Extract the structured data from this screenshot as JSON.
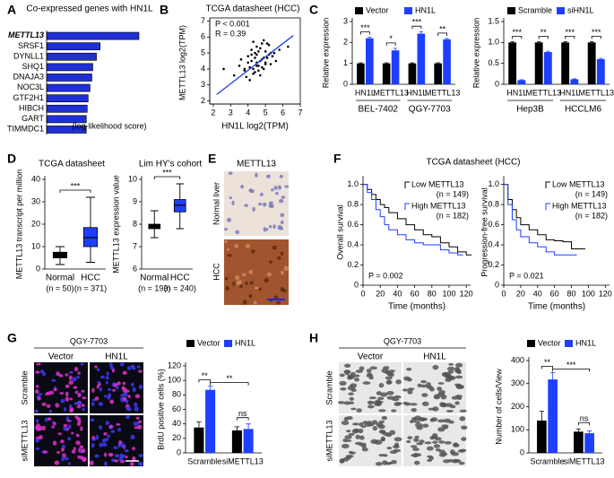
{
  "chart_data": [
    {
      "type": "hbar",
      "panel": "A",
      "title": "Co-expressed genes with HN1L",
      "annotation": "(log-likelihood score)",
      "color": "#1f2fd6",
      "categories": [
        "METTL13",
        "SRSF1",
        "DYNLL1",
        "SHQ1",
        "DNAJA3",
        "NOC3L",
        "GTF2H1",
        "HIBCH",
        "GART",
        "TIMMDC1"
      ],
      "values": [
        100,
        58,
        54,
        50,
        49,
        47,
        45,
        44,
        43,
        43
      ]
    },
    {
      "type": "scatter",
      "panel": "B",
      "title": "TCGA datasheet (HCC)",
      "annotations": [
        "P < 0.001",
        "R = 0.39"
      ],
      "x_label": "HN1L log2(TPM)",
      "y_label": "METTL13 log2(TPM)",
      "xlim": [
        1.8,
        7.0
      ],
      "ylim": [
        1.8,
        7.2
      ],
      "xticks": [
        2,
        3,
        4,
        5,
        6,
        7
      ],
      "yticks": [
        2,
        3,
        4,
        5,
        6,
        7
      ],
      "color": "#000000",
      "fit_color": "#1f3fdd",
      "x": [
        3.2,
        3.5,
        3.8,
        4.0,
        4.1,
        4.2,
        4.3,
        4.4,
        4.5,
        4.5,
        4.6,
        4.7,
        4.8,
        4.9,
        5.0,
        5.1,
        5.2,
        5.3,
        5.5,
        5.8,
        3.9,
        4.2,
        4.4,
        4.6,
        4.8,
        5.0,
        5.2,
        4.3,
        4.7,
        4.9,
        3.6,
        4.1,
        4.5,
        4.8,
        5.4,
        2.6,
        4.0,
        4.4,
        4.6,
        5.1,
        6.3,
        4.2,
        4.5,
        4.9,
        5.6,
        3.8,
        4.3,
        4.7,
        5.0,
        5.3
      ],
      "values": [
        3.6,
        4.2,
        3.9,
        4.8,
        4.1,
        4.5,
        3.7,
        5.0,
        4.4,
        4.9,
        4.2,
        5.3,
        4.6,
        4.0,
        5.1,
        4.7,
        5.5,
        4.3,
        5.0,
        5.2,
        3.5,
        5.2,
        4.7,
        3.9,
        5.6,
        4.4,
        4.9,
        4.0,
        4.5,
        5.8,
        4.6,
        3.3,
        5.4,
        4.1,
        4.8,
        4.0,
        4.4,
        3.8,
        5.1,
        5.6,
        5.4,
        4.9,
        4.2,
        4.7,
        4.5,
        4.0,
        5.7,
        3.6,
        4.3,
        5.0
      ],
      "fit": {
        "x": [
          2.2,
          6.6
        ],
        "values": [
          2.4,
          6.1
        ]
      }
    },
    {
      "type": "bar",
      "panel": "C",
      "y_label": "Relative expression",
      "ylim": [
        0,
        3
      ],
      "yticks": [
        0,
        1,
        2,
        3
      ],
      "categories": [
        "HN1L",
        "METTL13",
        "HN1L",
        "METTL13"
      ],
      "groups": [
        "BEL-7402",
        "QGY-7703"
      ],
      "series": [
        {
          "name": "Vector",
          "color": "#000000",
          "values": [
            1,
            1,
            1,
            1
          ],
          "errors": [
            0.03,
            0.03,
            0.03,
            0.03
          ]
        },
        {
          "name": "HN1L",
          "color": "#1f3fff",
          "values": [
            2.2,
            1.62,
            2.42,
            2.15
          ],
          "errors": [
            0.05,
            0.1,
            0.1,
            0.04
          ]
        }
      ],
      "significance": [
        "***",
        "*",
        "***",
        "**"
      ]
    },
    {
      "type": "bar",
      "y_label": "Relative expression",
      "ylim": [
        0,
        1.5
      ],
      "yticks": [
        0,
        0.5,
        {
          "value": 1,
          "label": "1.0"
        },
        1.5
      ],
      "categories": [
        "HN1L",
        "METTL13",
        "HN1L",
        "METTL13"
      ],
      "groups": [
        "Hep3B",
        "HCCLM6"
      ],
      "series": [
        {
          "name": "Scramble",
          "color": "#000000",
          "values": [
            1,
            1,
            1,
            1
          ],
          "errors": [
            0.02,
            0.02,
            0.02,
            0.02
          ]
        },
        {
          "name": "siHN1L",
          "color": "#1f3fff",
          "values": [
            0.1,
            0.77,
            0.12,
            0.6
          ],
          "errors": [
            0.01,
            0.02,
            0.01,
            0.02
          ]
        }
      ],
      "significance": [
        "***",
        "**",
        "***",
        "***"
      ]
    },
    {
      "type": "box",
      "panel": "D",
      "title": "TCGA datasheet",
      "y_label": "METTL13 transcript per million",
      "ylim": [
        0,
        40
      ],
      "yticks": [
        0,
        10,
        20,
        30,
        40
      ],
      "categories": [
        "Normal",
        "HCC"
      ],
      "n_labels": [
        "(n = 50)",
        "(n = 371)"
      ],
      "colors": [
        "#000000",
        "#1f3fff"
      ],
      "boxes": [
        {
          "min": 2,
          "q1": 5,
          "median": 6,
          "q3": 7.5,
          "max": 10
        },
        {
          "min": 3,
          "q1": 10,
          "median": 14,
          "q3": 18.5,
          "max": 32
        }
      ],
      "significance": [
        "***"
      ]
    },
    {
      "type": "box",
      "title": "Lim HY's cohort",
      "y_label": "METTL13 expression value",
      "ylim": [
        6,
        10
      ],
      "yticks": [
        6,
        7,
        8,
        9,
        10
      ],
      "categories": [
        "Normal",
        "HCC"
      ],
      "n_labels": [
        "(n = 193)",
        "(n = 240)"
      ],
      "colors": [
        "#000000",
        "#1f3fff"
      ],
      "boxes": [
        {
          "min": 7.4,
          "q1": 7.8,
          "median": 7.9,
          "q3": 8.0,
          "max": 8.6
        },
        {
          "min": 7.8,
          "q1": 8.55,
          "median": 8.85,
          "q3": 9.1,
          "max": 9.8
        }
      ],
      "significance": [
        "***"
      ]
    },
    {
      "type": "survival",
      "panel": "F",
      "title": "TCGA datasheet (HCC)",
      "y_label": "Overall survival",
      "x_label": "Time (months)",
      "p_label": "P = 0.002",
      "xlim": [
        0,
        125
      ],
      "ylim": [
        0,
        1.05
      ],
      "xticks": [
        0,
        20,
        40,
        60,
        80,
        100,
        120
      ],
      "yticks": [
        0,
        0.2,
        0.4,
        0.6,
        0.8,
        {
          "value": 1,
          "label": "1.0"
        }
      ],
      "series": [
        {
          "name": "Low METTL13",
          "n_label": "(n = 149)",
          "color": "#000000",
          "x": [
            0,
            5,
            10,
            15,
            20,
            25,
            30,
            40,
            50,
            60,
            70,
            80,
            90,
            100,
            110,
            120
          ],
          "values": [
            1,
            0.95,
            0.9,
            0.85,
            0.8,
            0.77,
            0.72,
            0.66,
            0.6,
            0.55,
            0.5,
            0.48,
            0.42,
            0.38,
            0.33,
            0.3
          ]
        },
        {
          "name": "High METTL13",
          "n_label": "(n = 182)",
          "color": "#1f3fff",
          "x": [
            0,
            5,
            10,
            15,
            20,
            25,
            30,
            40,
            50,
            60,
            70,
            80,
            90,
            100,
            110
          ],
          "values": [
            1,
            0.92,
            0.85,
            0.75,
            0.68,
            0.6,
            0.55,
            0.5,
            0.45,
            0.42,
            0.4,
            0.4,
            0.35,
            0.32,
            0.3
          ]
        }
      ]
    },
    {
      "type": "survival",
      "y_label": "Progression-free survival",
      "x_label": "Time (months)",
      "p_label": "P = 0.021",
      "xlim": [
        0,
        125
      ],
      "ylim": [
        0,
        1.05
      ],
      "xticks": [
        0,
        20,
        40,
        60,
        80,
        100,
        120
      ],
      "yticks": [
        0,
        0.2,
        0.4,
        0.6,
        0.8,
        {
          "value": 1,
          "label": "1.0"
        }
      ],
      "series": [
        {
          "name": "Low METTL13",
          "n_label": "(n = 149)",
          "color": "#000000",
          "x": [
            0,
            5,
            10,
            15,
            20,
            30,
            40,
            50,
            60,
            70,
            80,
            90
          ],
          "values": [
            1,
            0.85,
            0.75,
            0.67,
            0.6,
            0.55,
            0.5,
            0.45,
            0.44,
            0.43,
            0.36,
            0.36
          ]
        },
        {
          "name": "High METTL13",
          "n_label": "(n = 182)",
          "color": "#1f3fff",
          "x": [
            0,
            5,
            10,
            15,
            20,
            30,
            40,
            50,
            60,
            70,
            80
          ],
          "values": [
            1,
            0.8,
            0.65,
            0.55,
            0.48,
            0.42,
            0.38,
            0.33,
            0.3,
            0.3,
            0.3
          ]
        }
      ]
    },
    {
      "type": "bar",
      "y_label": "BrdU positive cells (%)",
      "ylim": [
        0,
        120
      ],
      "yticks": [
        0,
        20,
        40,
        60,
        80,
        100,
        120
      ],
      "categories": [
        "Scramble",
        "siMETTL13"
      ],
      "series": [
        {
          "name": "Vector",
          "color": "#000000",
          "values": [
            35,
            31
          ],
          "errors": [
            8,
            5
          ]
        },
        {
          "name": "HN1L",
          "color": "#1f3fff",
          "values": [
            87,
            33
          ],
          "errors": [
            5,
            7
          ]
        }
      ],
      "significance": [
        "**",
        "**",
        "ns"
      ]
    },
    {
      "type": "bar",
      "y_label": "Number of cells/View",
      "ylim": [
        0,
        400
      ],
      "yticks": [
        0,
        100,
        200,
        300,
        400
      ],
      "categories": [
        "Scramble",
        "siMETTL13"
      ],
      "series": [
        {
          "name": "Vector",
          "color": "#000000",
          "values": [
            140,
            92
          ],
          "errors": [
            40,
            12
          ]
        },
        {
          "name": "HN1L",
          "color": "#1f3fff",
          "values": [
            318,
            85
          ],
          "errors": [
            30,
            10
          ]
        }
      ],
      "significance": [
        "**",
        "***",
        "ns"
      ]
    }
  ],
  "images": [
    {
      "panel": "E",
      "title": "METTL13",
      "rows": [
        "Normal liver",
        "HCC"
      ]
    },
    {
      "panel": "G",
      "title": "QGY-7703",
      "columns": [
        "Vector",
        "HN1L"
      ],
      "rows": [
        "Scramble",
        "siMETTL13"
      ]
    },
    {
      "panel": "H",
      "title": "QGY-7703",
      "columns": [
        "Vector",
        "HN1L"
      ],
      "rows": [
        "Scramble",
        "siMETTL13"
      ]
    }
  ]
}
